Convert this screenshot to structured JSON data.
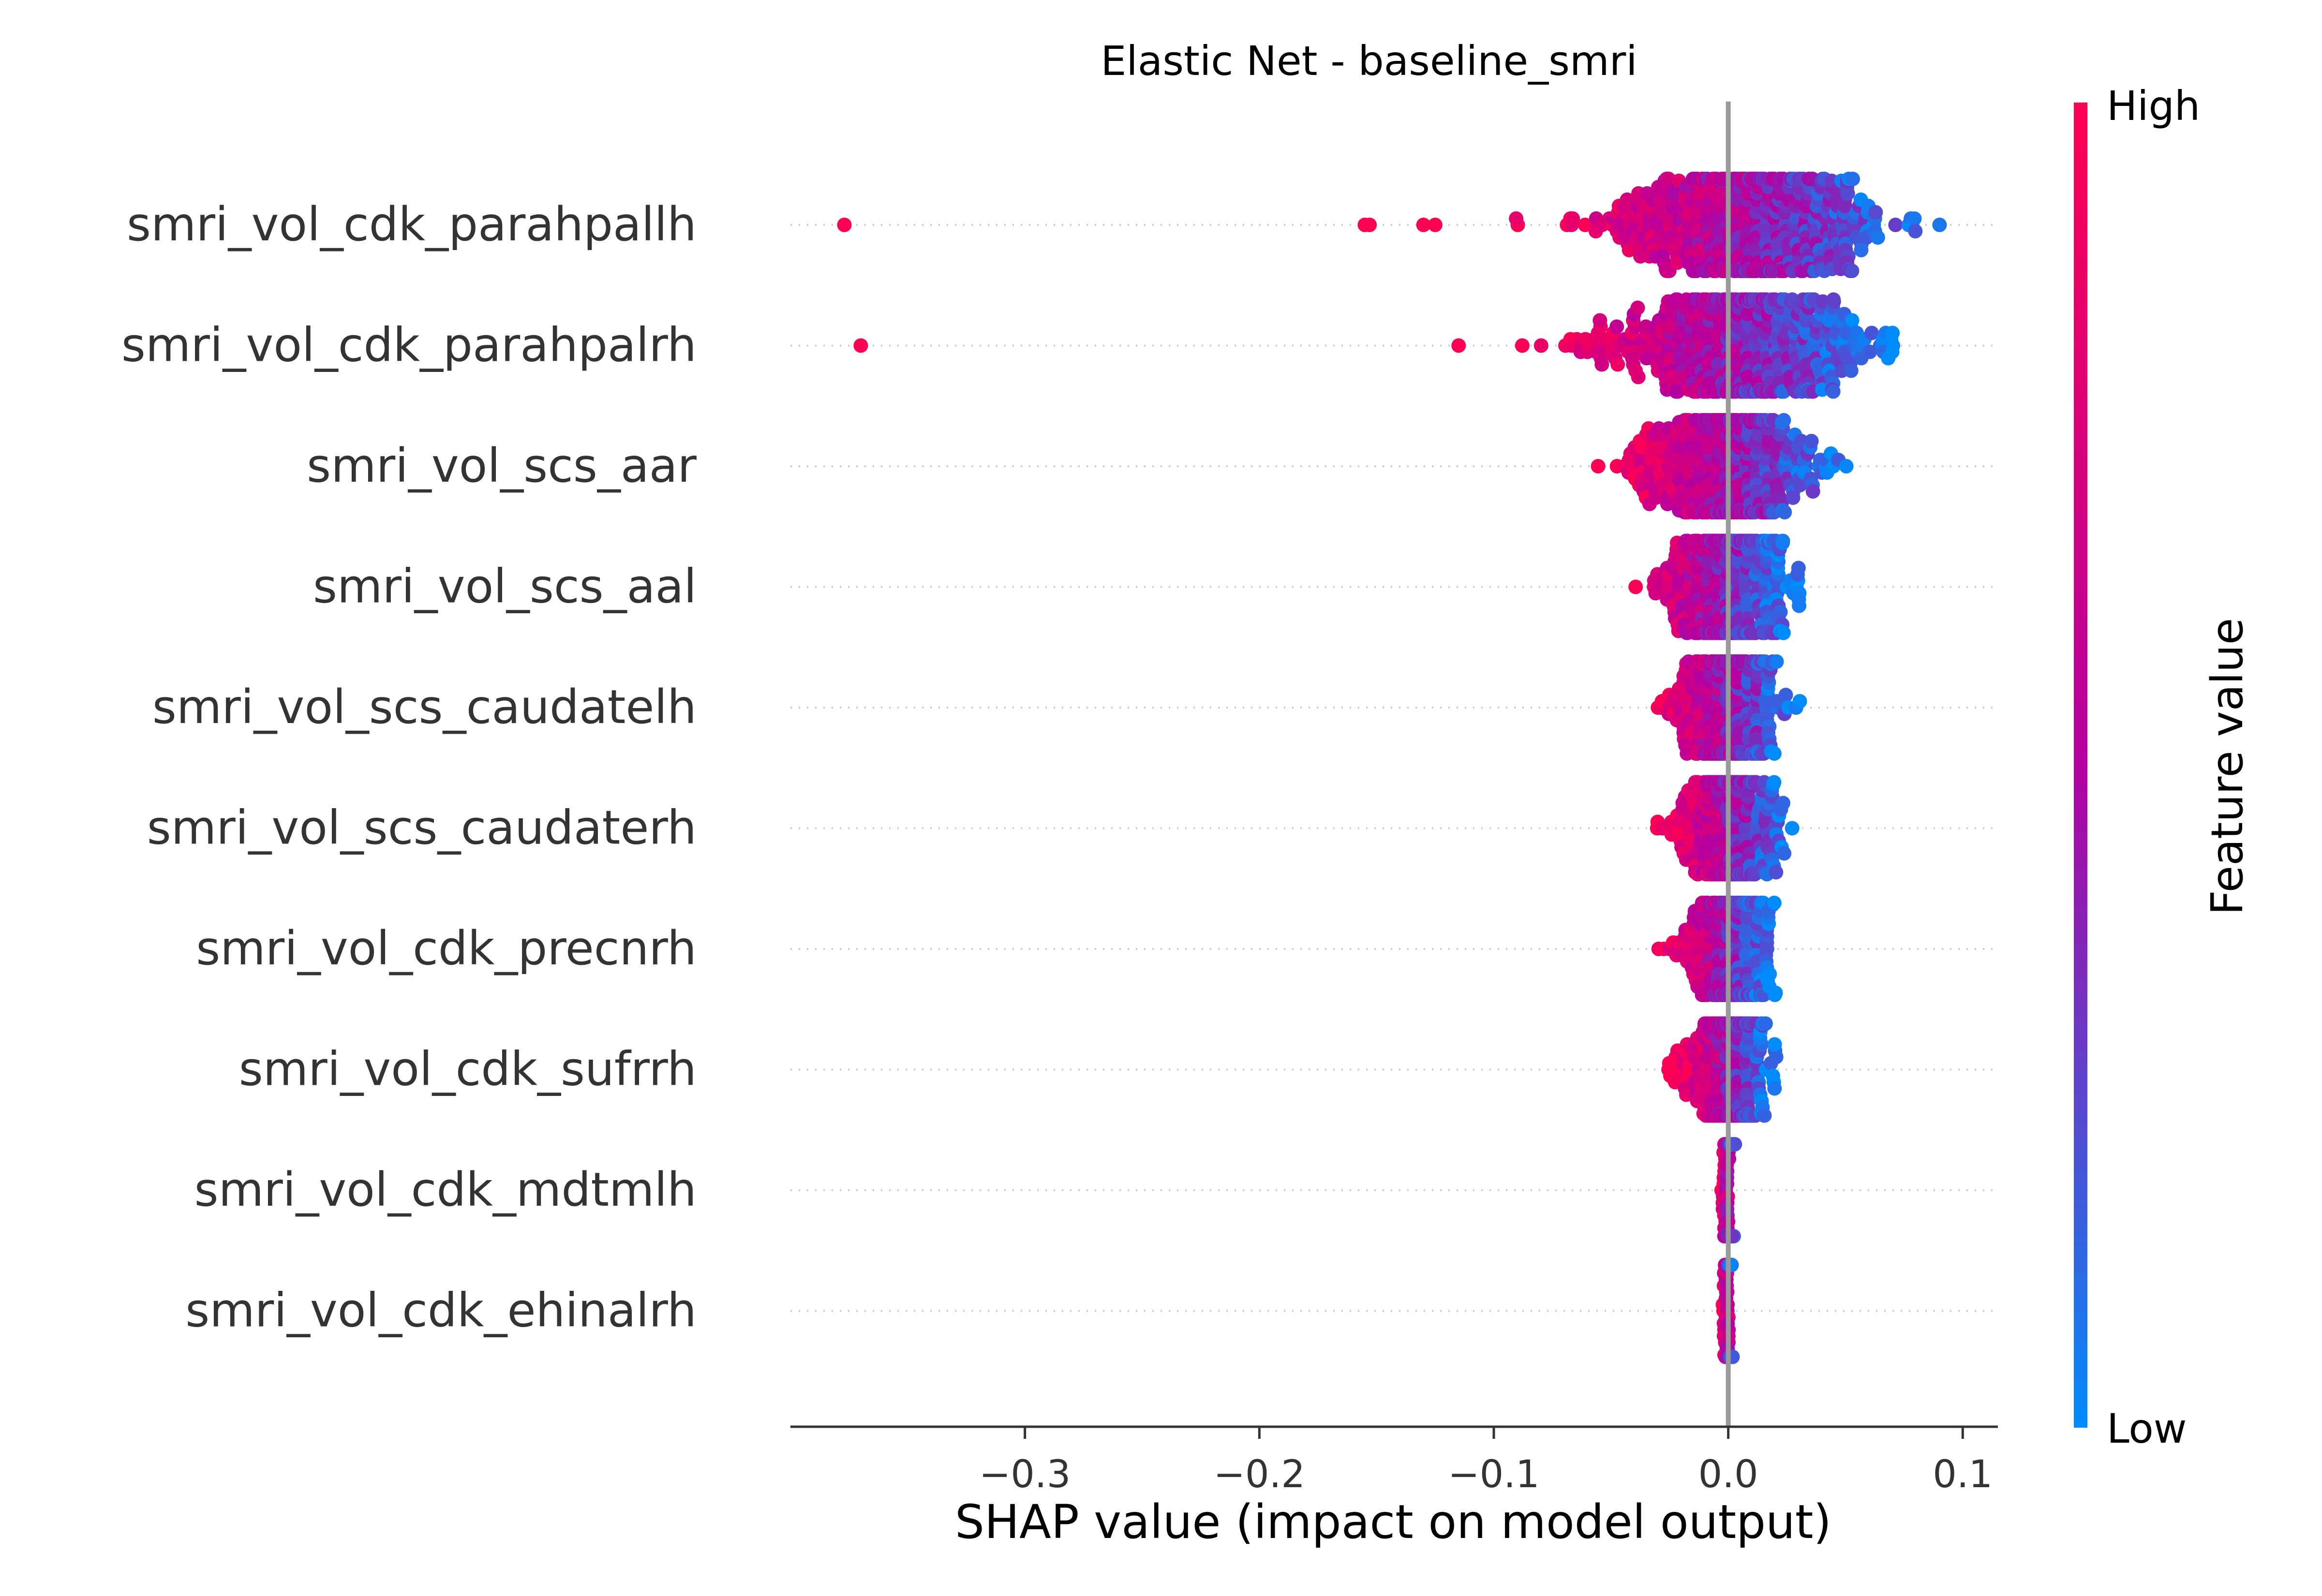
{
  "chart_data": {
    "type": "scatter",
    "subtype": "shap-beeswarm",
    "title": "Elastic Net - baseline_smri",
    "xlabel": "SHAP value (impact on model output)",
    "xlim": [
      -0.4,
      0.115
    ],
    "xticks": [
      -0.3,
      -0.2,
      -0.1,
      0.0,
      0.1
    ],
    "xtick_labels": [
      "−0.3",
      "−0.2",
      "−0.1",
      "0.0",
      "0.1"
    ],
    "zero_line": 0.0,
    "grid": false,
    "colorbar": {
      "label": "Feature value",
      "high_label": "High",
      "low_label": "Low",
      "high_color": "#ff0052",
      "mid_color": "#b400a0",
      "low_color": "#008bfb"
    },
    "features": [
      {
        "name": "smri_vol_cdk_parahpallh",
        "min": -0.09,
        "max": 0.09,
        "spread": 0.03,
        "center": 0.008,
        "count": 600,
        "outliers": [
          -0.377,
          -0.155,
          -0.153,
          -0.13,
          -0.125
        ]
      },
      {
        "name": "smri_vol_cdk_parahpalrh",
        "min": -0.088,
        "max": 0.07,
        "spread": 0.028,
        "center": 0.004,
        "count": 560,
        "outliers": [
          -0.37,
          -0.115
        ]
      },
      {
        "name": "smri_vol_scs_aar",
        "min": -0.055,
        "max": 0.05,
        "spread": 0.018,
        "center": 0.0,
        "count": 480,
        "outliers": []
      },
      {
        "name": "smri_vol_scs_aal",
        "min": -0.047,
        "max": 0.03,
        "spread": 0.013,
        "center": 0.0,
        "count": 420,
        "outliers": []
      },
      {
        "name": "smri_vol_scs_caudatelh",
        "min": -0.037,
        "max": 0.03,
        "spread": 0.011,
        "center": 0.0,
        "count": 400,
        "outliers": []
      },
      {
        "name": "smri_vol_scs_caudaterh",
        "min": -0.03,
        "max": 0.027,
        "spread": 0.01,
        "center": 0.0,
        "count": 380,
        "outliers": []
      },
      {
        "name": "smri_vol_cdk_precnrh",
        "min": -0.03,
        "max": 0.02,
        "spread": 0.009,
        "center": 0.0,
        "count": 360,
        "outliers": []
      },
      {
        "name": "smri_vol_cdk_sufrrh",
        "min": -0.025,
        "max": 0.02,
        "spread": 0.008,
        "center": 0.0,
        "count": 340,
        "outliers": []
      },
      {
        "name": "smri_vol_cdk_mdtmlh",
        "min": -0.003,
        "max": 0.003,
        "spread": 0.001,
        "center": 0.0,
        "count": 150,
        "outliers": []
      },
      {
        "name": "smri_vol_cdk_ehinalrh",
        "min": -0.002,
        "max": 0.002,
        "spread": 0.0008,
        "center": 0.0,
        "count": 150,
        "outliers": []
      }
    ]
  }
}
